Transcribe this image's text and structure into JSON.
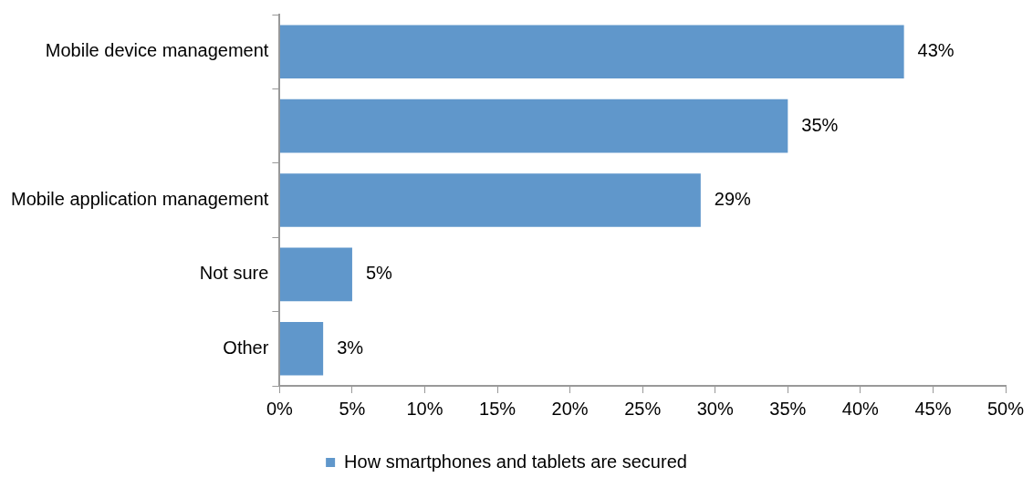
{
  "chart_data": {
    "type": "bar",
    "orientation": "horizontal",
    "categories": [
      "Mobile device management",
      null,
      "Mobile application management",
      "Not sure",
      "Other"
    ],
    "series": [
      {
        "name": "How smartphones and tablets are secured",
        "color": "#6097cb",
        "values": [
          43,
          35,
          29,
          5,
          3
        ],
        "value_labels": [
          "43%",
          "35%",
          "29%",
          "5%",
          "3%"
        ]
      }
    ],
    "xlim": [
      0,
      50
    ],
    "xticks": [
      {
        "value": 0,
        "label": "0%"
      },
      {
        "value": 5,
        "label": "5%"
      },
      {
        "value": 10,
        "label": "10%"
      },
      {
        "value": 15,
        "label": "15%"
      },
      {
        "value": 20,
        "label": "20%"
      },
      {
        "value": 25,
        "label": "25%"
      },
      {
        "value": 30,
        "label": "30%"
      },
      {
        "value": 35,
        "label": "35%"
      },
      {
        "value": 40,
        "label": "40%"
      },
      {
        "value": 45,
        "label": "45%"
      },
      {
        "value": 50,
        "label": "50%"
      }
    ],
    "grid": false,
    "legend": "bottom"
  }
}
